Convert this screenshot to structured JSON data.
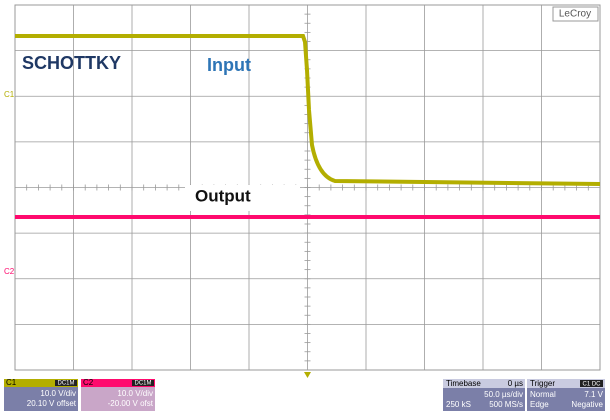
{
  "header": {
    "brand": "LeCroy"
  },
  "annotations": {
    "device": "SCHOTTKY",
    "input": "Input",
    "output": "Output"
  },
  "channel_markers": {
    "c1": "C1",
    "c2": "C2"
  },
  "channels": [
    {
      "label": "C1",
      "coupling": "DC1M",
      "scale": "10.0 V/div",
      "offset": "20.10 V offset"
    },
    {
      "label": "C2",
      "coupling": "DC1M",
      "scale": "10.0 V/div",
      "offset": "-20.00 V ofst"
    }
  ],
  "timebase": {
    "title": "Timebase",
    "delay": "0 µs",
    "scale": "50.0 µs/div",
    "samples": "250 kS",
    "rate": "500 MS/s"
  },
  "trigger": {
    "title": "Trigger",
    "source": "C1 DC",
    "mode": "Normal",
    "level": "7.1 V",
    "type": "Edge",
    "slope": "Negative"
  }
}
